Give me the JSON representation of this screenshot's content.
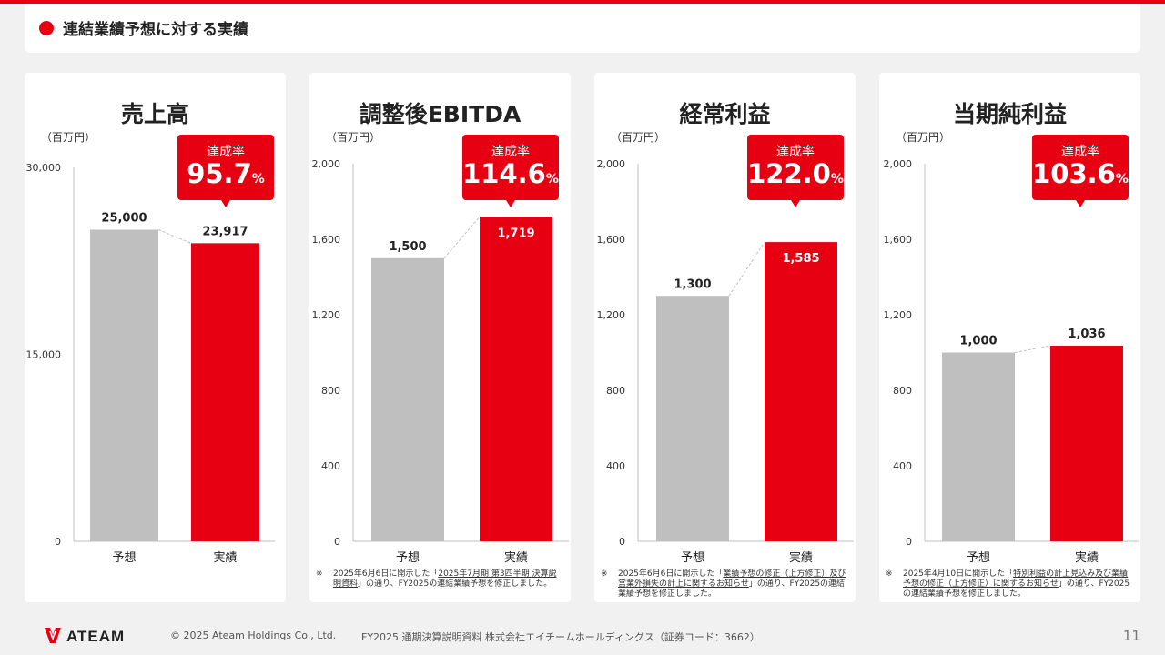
{
  "header": {
    "title": "連結業績予想に対する実績"
  },
  "panels": [
    {
      "title": "売上高",
      "unit": "（百万円）",
      "badge_label": "達成率",
      "badge_value": "95.7",
      "badge_unit": "%",
      "note": null
    },
    {
      "title": "調整後EBITDA",
      "unit": "（百万円）",
      "badge_label": "達成率",
      "badge_value": "114.6",
      "badge_unit": "%",
      "note": {
        "mark": "※",
        "pre": "2025年6月6日に開示した「",
        "link": "2025年7月期 第3四半期 決算説明資料",
        "post": "」の通り、FY2025の連結業績予想を修正しました。"
      }
    },
    {
      "title": "経常利益",
      "unit": "（百万円）",
      "badge_label": "達成率",
      "badge_value": "122.0",
      "badge_unit": "%",
      "note": {
        "mark": "※",
        "pre": "2025年6月6日に開示した「",
        "link": "業績予想の修正（上方修正）及び営業外損失の計上に関するお知らせ",
        "post": "」の通り、FY2025の連結業績予想を修正しました。"
      }
    },
    {
      "title": "当期純利益",
      "unit": "（百万円）",
      "badge_label": "達成率",
      "badge_value": "103.6",
      "badge_unit": "%",
      "note": {
        "mark": "※",
        "pre": "2025年4月10日に開示した「",
        "link": "特別利益の計上見込み及び業績予想の修正（上方修正）に関するお知らせ",
        "post": "」の通り、FY2025の連結業績予想を修正しました。"
      }
    }
  ],
  "chart_data": [
    {
      "type": "bar",
      "title": "売上高",
      "ylabel": "（百万円）",
      "categories": [
        "予想",
        "実績"
      ],
      "values": [
        25000,
        23917
      ],
      "value_labels": [
        "25,000",
        "23,917"
      ],
      "ylim": [
        0,
        30000
      ],
      "yticks": [
        0,
        15000,
        30000
      ],
      "ytick_labels": [
        "0",
        "15,000",
        "30,000"
      ],
      "colors": [
        "#bfbfbf",
        "#e60012"
      ],
      "label_inside": [
        false,
        false
      ]
    },
    {
      "type": "bar",
      "title": "調整後EBITDA",
      "ylabel": "（百万円）",
      "categories": [
        "予想",
        "実績"
      ],
      "values": [
        1500,
        1719
      ],
      "value_labels": [
        "1,500",
        "1,719"
      ],
      "ylim": [
        0,
        2000
      ],
      "yticks": [
        0,
        400,
        800,
        1200,
        1600,
        2000
      ],
      "ytick_labels": [
        "0",
        "400",
        "800",
        "1,200",
        "1,600",
        "2,000"
      ],
      "colors": [
        "#bfbfbf",
        "#e60012"
      ],
      "label_inside": [
        false,
        true
      ]
    },
    {
      "type": "bar",
      "title": "経常利益",
      "ylabel": "（百万円）",
      "categories": [
        "予想",
        "実績"
      ],
      "values": [
        1300,
        1585
      ],
      "value_labels": [
        "1,300",
        "1,585"
      ],
      "ylim": [
        0,
        2000
      ],
      "yticks": [
        0,
        400,
        800,
        1200,
        1600,
        2000
      ],
      "ytick_labels": [
        "0",
        "400",
        "800",
        "1,200",
        "1,600",
        "2,000"
      ],
      "colors": [
        "#bfbfbf",
        "#e60012"
      ],
      "label_inside": [
        false,
        true
      ]
    },
    {
      "type": "bar",
      "title": "当期純利益",
      "ylabel": "（百万円）",
      "categories": [
        "予想",
        "実績"
      ],
      "values": [
        1000,
        1036
      ],
      "value_labels": [
        "1,000",
        "1,036"
      ],
      "ylim": [
        0,
        2000
      ],
      "yticks": [
        0,
        400,
        800,
        1200,
        1600,
        2000
      ],
      "ytick_labels": [
        "0",
        "400",
        "800",
        "1,200",
        "1,600",
        "2,000"
      ],
      "colors": [
        "#bfbfbf",
        "#e60012"
      ],
      "label_inside": [
        false,
        false
      ]
    }
  ],
  "footer": {
    "brand": "ATEAM",
    "copyright": "© 2025 Ateam Holdings Co., Ltd.",
    "document": "FY2025 通期決算説明資料 株式会社エイチームホールディングス（証券コード：3662）",
    "page": "11"
  }
}
